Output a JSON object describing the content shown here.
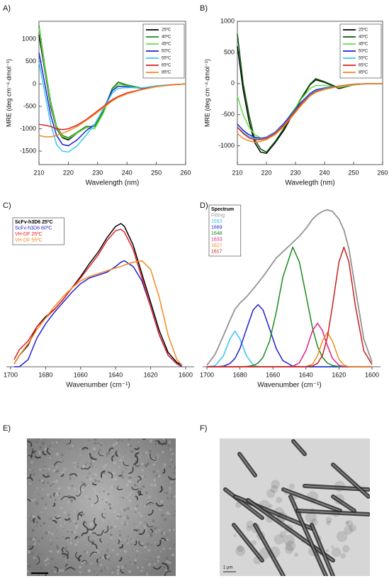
{
  "chart_data": [
    {
      "type": "line",
      "label": "A)",
      "x_label": "Wavelength (nm)",
      "y_label": "MRE (deg cm⁻²·dmol⁻¹)",
      "frame": true,
      "legend": "upper right",
      "legend_style": "swatch",
      "xlim": [
        210,
        260
      ],
      "ylim": [
        -1800,
        1400
      ],
      "xticks": [
        210,
        220,
        230,
        240,
        250,
        260
      ],
      "yticks": [
        -1500,
        -1000,
        -500,
        0,
        500,
        1000
      ],
      "x": [
        210,
        212,
        214,
        216,
        218,
        220,
        223,
        226,
        229,
        232,
        235,
        237,
        240,
        245,
        250,
        255,
        260
      ],
      "series": [
        {
          "name": "25ºC",
          "color": "#000000",
          "values": [
            1100,
            300,
            -500,
            -1000,
            -1200,
            -1250,
            -1100,
            -950,
            -950,
            -600,
            -100,
            40,
            -30,
            -100,
            -50,
            -20,
            0
          ]
        },
        {
          "name": "40ºC",
          "color": "#1a8a1a",
          "values": [
            1300,
            400,
            -400,
            -950,
            -1150,
            -1200,
            -1080,
            -950,
            -950,
            -600,
            -100,
            40,
            -20,
            -90,
            -50,
            -20,
            0
          ]
        },
        {
          "name": "45ºC",
          "color": "#66dd44",
          "values": [
            1250,
            350,
            -450,
            -980,
            -1180,
            -1220,
            -1100,
            -980,
            -1000,
            -650,
            -150,
            0,
            -40,
            -100,
            -50,
            -20,
            0
          ]
        },
        {
          "name": "50ºC",
          "color": "#1f1fd0",
          "values": [
            700,
            0,
            -700,
            -1150,
            -1350,
            -1380,
            -1250,
            -1050,
            -900,
            -550,
            -150,
            -50,
            -60,
            -100,
            -50,
            -20,
            0
          ]
        },
        {
          "name": "55ºC",
          "color": "#33c8f0",
          "values": [
            500,
            -200,
            -900,
            -1350,
            -1500,
            -1520,
            -1380,
            -1150,
            -900,
            -550,
            -200,
            -100,
            -80,
            -90,
            -40,
            -15,
            0
          ]
        },
        {
          "name": "65ºC",
          "color": "#e02020",
          "values": [
            -900,
            -920,
            -950,
            -1000,
            -1020,
            -1000,
            -920,
            -800,
            -650,
            -500,
            -350,
            -280,
            -200,
            -120,
            -60,
            -20,
            0
          ]
        },
        {
          "name": "85ºC",
          "color": "#f08a20",
          "values": [
            -1150,
            -1180,
            -1180,
            -1150,
            -1100,
            -1050,
            -950,
            -820,
            -680,
            -530,
            -380,
            -300,
            -220,
            -130,
            -60,
            -25,
            0
          ]
        }
      ]
    },
    {
      "type": "line",
      "label": "B)",
      "x_label": "Wavelegth (nm)",
      "y_label": "MRE (deg cm⁻²·dmol⁻¹)",
      "frame": true,
      "legend": "upper right",
      "legend_style": "swatch",
      "xlim": [
        210,
        260
      ],
      "ylim": [
        -1300,
        1000
      ],
      "xticks": [
        210,
        220,
        230,
        240,
        250,
        260
      ],
      "yticks": [
        -1000,
        -500,
        0,
        500,
        1000
      ],
      "x": [
        210,
        212,
        214,
        216,
        218,
        220,
        223,
        226,
        229,
        232,
        235,
        237,
        240,
        245,
        250,
        255,
        260
      ],
      "series": [
        {
          "name": "25ºC",
          "color": "#000000",
          "values": [
            600,
            -100,
            -600,
            -950,
            -1100,
            -1120,
            -950,
            -750,
            -500,
            -250,
            -20,
            60,
            20,
            -80,
            -20,
            0,
            0
          ]
        },
        {
          "name": "40ºC",
          "color": "#0a5a0a",
          "values": [
            800,
            0,
            -500,
            -900,
            -1050,
            -1100,
            -930,
            -720,
            -480,
            -230,
            -10,
            80,
            30,
            -70,
            -20,
            0,
            0
          ]
        },
        {
          "name": "45ºC",
          "color": "#66dd44",
          "values": [
            -200,
            -500,
            -700,
            -820,
            -870,
            -880,
            -800,
            -650,
            -450,
            -250,
            -80,
            -30,
            -30,
            -60,
            -20,
            0,
            0
          ]
        },
        {
          "name": "50ºC",
          "color": "#1f1fd0",
          "values": [
            -650,
            -750,
            -820,
            -860,
            -880,
            -860,
            -780,
            -640,
            -470,
            -300,
            -160,
            -100,
            -70,
            -40,
            -10,
            0,
            0
          ]
        },
        {
          "name": "55ºC",
          "color": "#33c8f0",
          "values": [
            -700,
            -780,
            -850,
            -880,
            -890,
            -870,
            -790,
            -660,
            -490,
            -320,
            -180,
            -120,
            -80,
            -40,
            -10,
            0,
            0
          ]
        },
        {
          "name": "65ºC",
          "color": "#e02020",
          "values": [
            -700,
            -800,
            -870,
            -900,
            -900,
            -880,
            -800,
            -670,
            -500,
            -330,
            -190,
            -130,
            -90,
            -40,
            -10,
            0,
            0
          ]
        },
        {
          "name": "85ºC",
          "color": "#f08a20",
          "values": [
            -800,
            -880,
            -920,
            -940,
            -930,
            -900,
            -820,
            -690,
            -520,
            -350,
            -200,
            -140,
            -95,
            -45,
            -15,
            0,
            0
          ]
        }
      ]
    },
    {
      "type": "line",
      "label": "C)",
      "x_label": "Wavenumber (cm⁻¹)",
      "frame": false,
      "legend": "upper left",
      "legend_style": "text",
      "xlim": [
        1700,
        1600
      ],
      "ylim": [
        0,
        1.05
      ],
      "xticks": [
        1700,
        1680,
        1660,
        1640,
        1620,
        1600
      ],
      "x": [
        1698,
        1695,
        1690,
        1685,
        1680,
        1675,
        1670,
        1665,
        1660,
        1655,
        1650,
        1645,
        1640,
        1637,
        1635,
        1630,
        1625,
        1620,
        1615,
        1610,
        1605,
        1602
      ],
      "series": [
        {
          "name": "ScFv-h3D6 25ºC",
          "color": "#000000",
          "values": [
            0.02,
            0.08,
            0.15,
            0.28,
            0.35,
            0.4,
            0.47,
            0.55,
            0.63,
            0.72,
            0.8,
            0.9,
            0.98,
            1.0,
            0.98,
            0.85,
            0.65,
            0.45,
            0.25,
            0.1,
            0.03,
            0.01
          ]
        },
        {
          "name": "ScFv-h3D6 60ºC",
          "color": "#1f1fd0",
          "values": [
            0,
            0,
            0.05,
            0.2,
            0.3,
            0.38,
            0.45,
            0.52,
            0.58,
            0.62,
            0.64,
            0.66,
            0.7,
            0.73,
            0.74,
            0.7,
            0.6,
            0.42,
            0.22,
            0.08,
            0.02,
            0
          ]
        },
        {
          "name": "VH-DF 25ºC",
          "color": "#e02020",
          "values": [
            0.05,
            0.12,
            0.18,
            0.28,
            0.34,
            0.4,
            0.47,
            0.55,
            0.62,
            0.7,
            0.78,
            0.88,
            0.95,
            0.96,
            0.94,
            0.82,
            0.62,
            0.42,
            0.22,
            0.08,
            0.02,
            0.01
          ]
        },
        {
          "name": "VH-DF 55ºC",
          "color": "#f08a20",
          "values": [
            0.02,
            0.08,
            0.16,
            0.26,
            0.34,
            0.42,
            0.49,
            0.55,
            0.6,
            0.63,
            0.65,
            0.67,
            0.69,
            0.7,
            0.71,
            0.73,
            0.74,
            0.68,
            0.48,
            0.22,
            0.05,
            0.01
          ]
        }
      ]
    },
    {
      "type": "line",
      "label": "D)",
      "x_label": "Wavenumber (cm⁻¹)",
      "frame": false,
      "legend": "upper left",
      "legend_style": "text",
      "xlim": [
        1700,
        1600
      ],
      "ylim": [
        0,
        1.05
      ],
      "xticks": [
        1700,
        1680,
        1660,
        1640,
        1620,
        1600
      ],
      "x": [
        1700,
        1695,
        1690,
        1686,
        1683,
        1680,
        1676,
        1672,
        1669,
        1666,
        1662,
        1658,
        1654,
        1648,
        1644,
        1640,
        1636,
        1633,
        1630,
        1627,
        1624,
        1620,
        1617,
        1614,
        1610,
        1605,
        1600
      ],
      "series": [
        {
          "name": "Spectrum",
          "color": "#000000",
          "values": [
            0.01,
            0.08,
            0.2,
            0.3,
            0.37,
            0.41,
            0.45,
            0.5,
            0.54,
            0.58,
            0.64,
            0.7,
            0.74,
            0.8,
            0.84,
            0.89,
            0.95,
            0.98,
            1.0,
            1.01,
            1.0,
            0.95,
            0.88,
            0.76,
            0.5,
            0.18,
            0.03
          ]
        },
        {
          "name": "Fitting",
          "color": "#999999",
          "values": [
            0.01,
            0.08,
            0.2,
            0.3,
            0.37,
            0.41,
            0.45,
            0.5,
            0.54,
            0.58,
            0.64,
            0.7,
            0.74,
            0.8,
            0.84,
            0.89,
            0.95,
            0.98,
            1.0,
            1.01,
            1.0,
            0.95,
            0.88,
            0.76,
            0.5,
            0.18,
            0.03
          ]
        },
        {
          "name": "1683",
          "color": "#33c8f0",
          "values": [
            0,
            0.007,
            0.07,
            0.18,
            0.23,
            0.18,
            0.07,
            0.012,
            0.002,
            0,
            0,
            0,
            0,
            0,
            0,
            0,
            0,
            0,
            0,
            0,
            0,
            0,
            0,
            0,
            0,
            0,
            0
          ]
        },
        {
          "name": "1669",
          "color": "#1f1fd0",
          "values": [
            0,
            0,
            0.004,
            0.021,
            0.054,
            0.117,
            0.243,
            0.365,
            0.4,
            0.365,
            0.243,
            0.117,
            0.04,
            0.004,
            0,
            0,
            0,
            0,
            0,
            0,
            0,
            0,
            0,
            0,
            0,
            0,
            0
          ]
        },
        {
          "name": "1648",
          "color": "#1a8a1a",
          "values": [
            0,
            0,
            0,
            0,
            0,
            0,
            0.002,
            0.008,
            0.024,
            0.061,
            0.166,
            0.351,
            0.576,
            0.77,
            0.675,
            0.464,
            0.248,
            0.131,
            0.061,
            0.024,
            0.008,
            0.002,
            0,
            0,
            0,
            0,
            0
          ]
        },
        {
          "name": "1633",
          "color": "#e0208a",
          "values": [
            0,
            0,
            0,
            0,
            0,
            0,
            0,
            0,
            0,
            0,
            0,
            0,
            0,
            0.003,
            0.025,
            0.105,
            0.233,
            0.28,
            0.233,
            0.136,
            0.055,
            0.009,
            0.002,
            0,
            0,
            0,
            0
          ]
        },
        {
          "name": "1627",
          "color": "#f08a20",
          "values": [
            0,
            0,
            0,
            0,
            0,
            0,
            0,
            0,
            0,
            0,
            0,
            0,
            0,
            0,
            0,
            0.001,
            0.017,
            0.072,
            0.166,
            0.22,
            0.166,
            0.048,
            0.01,
            0.001,
            0,
            0,
            0
          ]
        },
        {
          "name": "1617",
          "color": "#c81e1e",
          "values": [
            0,
            0,
            0,
            0,
            0,
            0,
            0,
            0,
            0,
            0,
            0,
            0,
            0,
            0,
            0,
            0.001,
            0.005,
            0.022,
            0.073,
            0.191,
            0.388,
            0.675,
            0.77,
            0.675,
            0.388,
            0.104,
            0.014
          ]
        }
      ]
    }
  ],
  "images": [
    {
      "label": "E)"
    },
    {
      "label": "F)",
      "scale_bar": "1 µm"
    }
  ]
}
